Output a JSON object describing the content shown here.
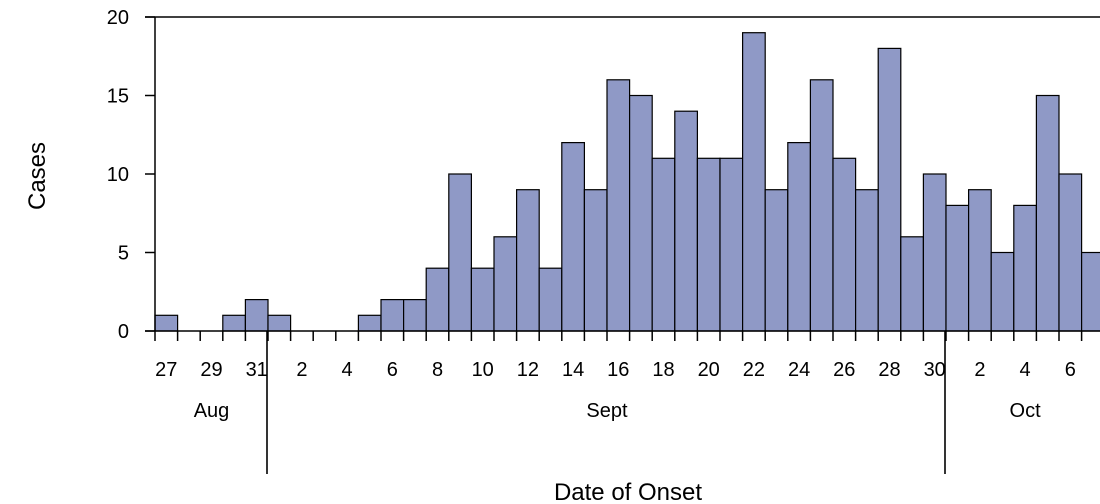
{
  "chart_data": {
    "type": "bar",
    "title": "",
    "xlabel": "Date of Onset",
    "ylabel": "Cases",
    "ylim": [
      0,
      20
    ],
    "yticks": [
      0,
      5,
      10,
      15,
      20
    ],
    "grid": false,
    "legend": "none",
    "bar_color": "#8f99c6",
    "bar_edge_color": "#000000",
    "categories": [
      "Aug 27",
      "Aug 28",
      "Aug 29",
      "Aug 30",
      "Aug 31",
      "Sept 1",
      "Sept 2",
      "Sept 3",
      "Sept 4",
      "Sept 5",
      "Sept 6",
      "Sept 7",
      "Sept 8",
      "Sept 9",
      "Sept 10",
      "Sept 11",
      "Sept 12",
      "Sept 13",
      "Sept 14",
      "Sept 15",
      "Sept 16",
      "Sept 17",
      "Sept 18",
      "Sept 19",
      "Sept 20",
      "Sept 21",
      "Sept 22",
      "Sept 23",
      "Sept 24",
      "Sept 25",
      "Sept 26",
      "Sept 27",
      "Sept 28",
      "Sept 29",
      "Sept 30",
      "Oct 1",
      "Oct 2",
      "Oct 3",
      "Oct 4",
      "Oct 5",
      "Oct 6",
      "Oct 7"
    ],
    "values": [
      1,
      0,
      0,
      1,
      2,
      1,
      0,
      0,
      0,
      1,
      2,
      2,
      4,
      10,
      4,
      6,
      9,
      4,
      12,
      9,
      16,
      15,
      11,
      14,
      11,
      11,
      19,
      9,
      12,
      16,
      11,
      9,
      18,
      6,
      10,
      8,
      9,
      5,
      8,
      15,
      10,
      5
    ],
    "x_tick_labels": [
      "27",
      "",
      "29",
      "",
      "31",
      "",
      "2",
      "",
      "4",
      "",
      "6",
      "",
      "8",
      "",
      "10",
      "",
      "12",
      "",
      "14",
      "",
      "16",
      "",
      "18",
      "",
      "20",
      "",
      "22",
      "",
      "24",
      "",
      "26",
      "",
      "28",
      "",
      "30",
      "",
      "2",
      "",
      "4",
      "",
      "6",
      ""
    ],
    "month_labels": [
      {
        "label": "Aug",
        "start": 0,
        "end": 4
      },
      {
        "label": "Sept",
        "start": 5,
        "end": 34
      },
      {
        "label": "Oct",
        "start": 35,
        "end": 41
      }
    ],
    "month_dividers": [
      5,
      35
    ]
  }
}
